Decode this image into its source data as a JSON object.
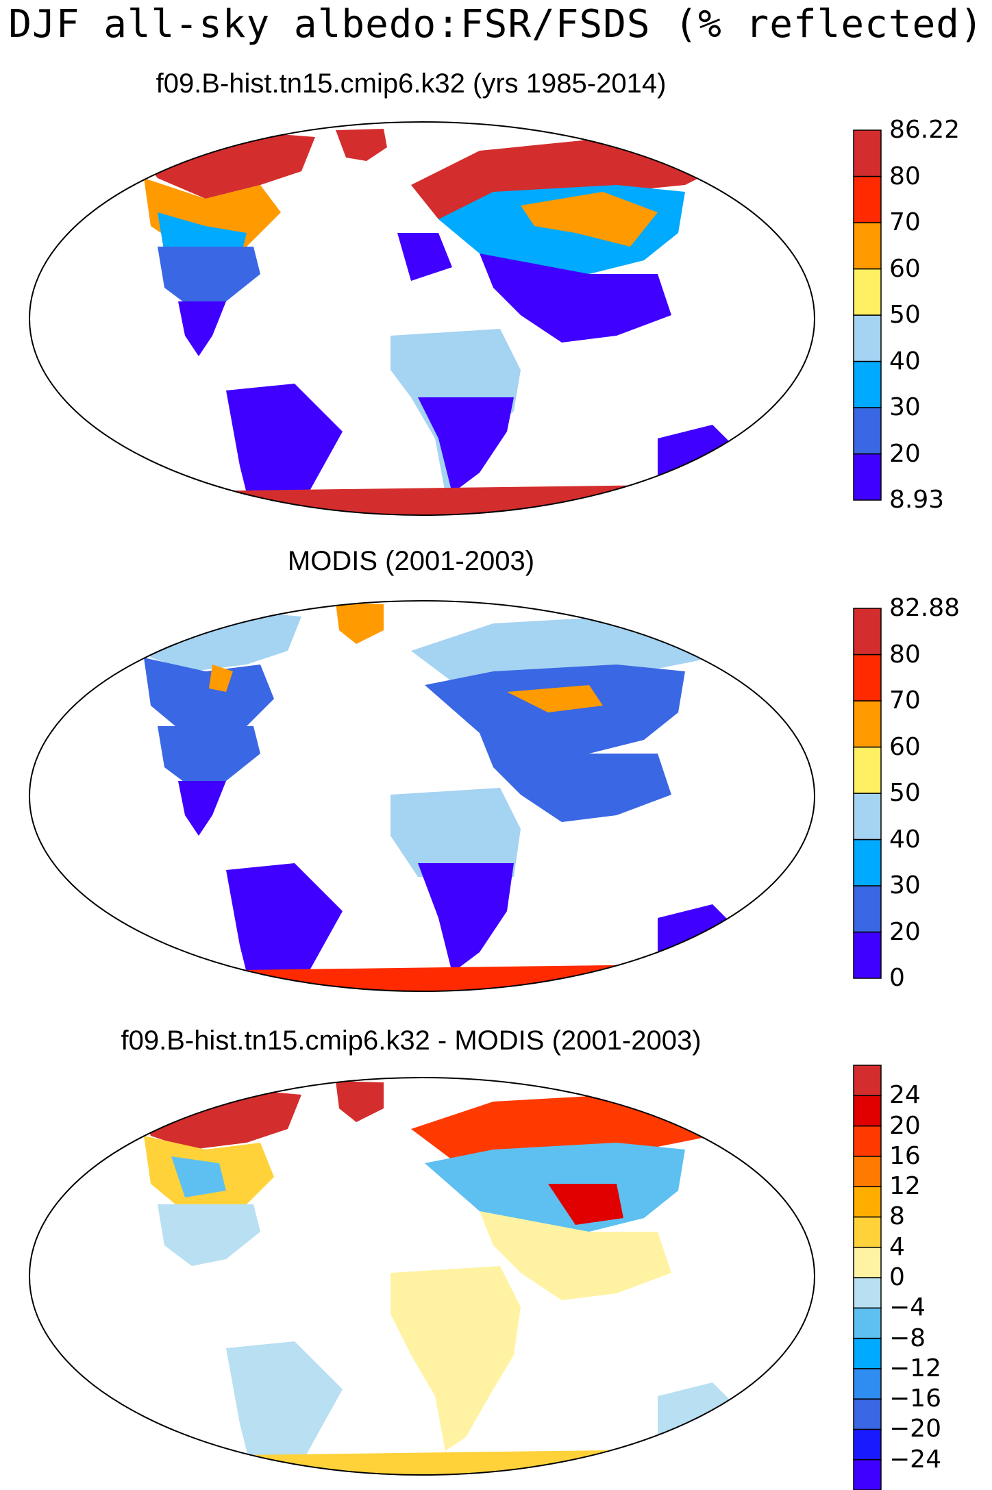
{
  "title": "DJF all-sky albedo:FSR/FSDS (% reflected)",
  "panels": [
    {
      "title": "f09.B-hist.tn15.cmip6.k32 (yrs 1985-2014)",
      "colorbar": {
        "colors": [
          "#3f00ff",
          "#3a67e3",
          "#00aaff",
          "#a5d3f2",
          "#ffef63",
          "#ff9a00",
          "#ff2a00",
          "#d42d2d"
        ],
        "labels": [
          "8.93",
          "20",
          "30",
          "40",
          "50",
          "60",
          "70",
          "80",
          "86.22"
        ]
      }
    },
    {
      "title": "MODIS (2001-2003)",
      "colorbar": {
        "colors": [
          "#3f00ff",
          "#3a67e3",
          "#00aaff",
          "#a5d3f2",
          "#ffef63",
          "#ff9a00",
          "#ff2a00",
          "#d42d2d"
        ],
        "labels": [
          "0",
          "20",
          "30",
          "40",
          "50",
          "60",
          "70",
          "80",
          "82.88"
        ]
      }
    },
    {
      "title": "f09.B-hist.tn15.cmip6.k32 - MODIS (2001-2003)",
      "colorbar": {
        "colors": [
          "#3f00ff",
          "#1a1aff",
          "#3a67e3",
          "#2f8cf0",
          "#00aaff",
          "#5ec0f0",
          "#b8dff2",
          "#fff3a3",
          "#ffd23a",
          "#ffae00",
          "#ff7a00",
          "#ff3a00",
          "#e00000",
          "#d42d2d"
        ],
        "labels": [
          "-24",
          "-20",
          "-16",
          "-12",
          "-8",
          "-4",
          "0",
          "4",
          "8",
          "12",
          "16",
          "20",
          "24"
        ]
      }
    }
  ]
}
